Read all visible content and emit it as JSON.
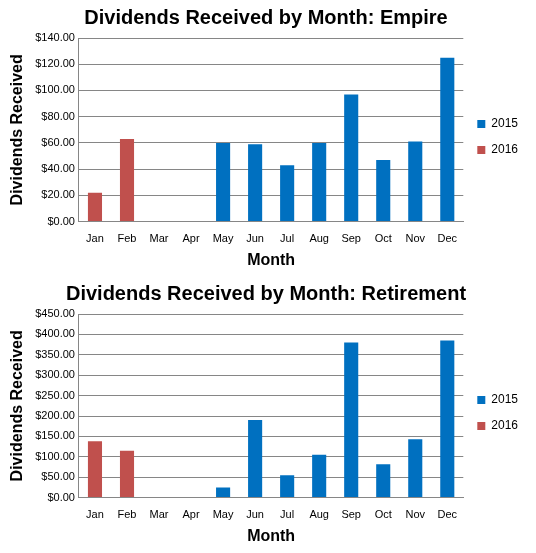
{
  "chart_data": [
    {
      "type": "bar",
      "title": "Dividends Received by Month: Empire",
      "x_label": "Month",
      "y_label": "Dividends Received",
      "categories": [
        "Jan",
        "Feb",
        "Mar",
        "Apr",
        "May",
        "Jun",
        "Jul",
        "Aug",
        "Sep",
        "Oct",
        "Nov",
        "Dec"
      ],
      "series": [
        {
          "name": "2015",
          "color": "#0070c0",
          "values": [
            null,
            null,
            null,
            null,
            60,
            59,
            43,
            60,
            97,
            47,
            61,
            125
          ]
        },
        {
          "name": "2016",
          "color": "#c0504d",
          "values": [
            22,
            63,
            null,
            null,
            null,
            null,
            null,
            null,
            null,
            null,
            null,
            null
          ]
        }
      ],
      "ylim": [
        0,
        140
      ],
      "yticks": [
        {
          "value": 0,
          "label": "$0.00"
        },
        {
          "value": 20,
          "label": "$20.00"
        },
        {
          "value": 40,
          "label": "$40.00"
        },
        {
          "value": 60,
          "label": "$60.00"
        },
        {
          "value": 80,
          "label": "$80.00"
        },
        {
          "value": 100,
          "label": "$100.00"
        },
        {
          "value": 120,
          "label": "$120.00"
        },
        {
          "value": 140,
          "label": "$140.00"
        }
      ],
      "grid": true,
      "legend": "right"
    },
    {
      "type": "bar",
      "title": "Dividends Received by Month: Retirement",
      "x_label": "Month",
      "y_label": "Dividends Received",
      "categories": [
        "Jan",
        "Feb",
        "Mar",
        "Apr",
        "May",
        "Jun",
        "Jul",
        "Aug",
        "Sep",
        "Oct",
        "Nov",
        "Dec"
      ],
      "series": [
        {
          "name": "2015",
          "color": "#0070c0",
          "values": [
            null,
            null,
            null,
            null,
            25,
            190,
            55,
            105,
            380,
            82,
            143,
            385
          ]
        },
        {
          "name": "2016",
          "color": "#c0504d",
          "values": [
            138,
            115,
            null,
            null,
            null,
            null,
            null,
            null,
            null,
            null,
            null,
            null
          ]
        }
      ],
      "ylim": [
        0,
        450
      ],
      "yticks": [
        {
          "value": 0,
          "label": "$0.00"
        },
        {
          "value": 50,
          "label": "$50.00"
        },
        {
          "value": 100,
          "label": "$100.00"
        },
        {
          "value": 150,
          "label": "$150.00"
        },
        {
          "value": 200,
          "label": "$200.00"
        },
        {
          "value": 250,
          "label": "$250.00"
        },
        {
          "value": 300,
          "label": "$300.00"
        },
        {
          "value": 350,
          "label": "$350.00"
        },
        {
          "value": 400,
          "label": "$400.00"
        },
        {
          "value": 450,
          "label": "$450.00"
        }
      ],
      "grid": true,
      "legend": "right"
    }
  ]
}
